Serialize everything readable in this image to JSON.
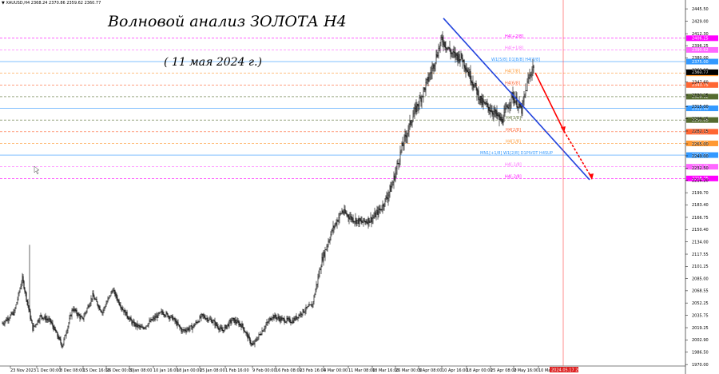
{
  "header": {
    "symbol": "XAUUSD,H4",
    "ohlc": "2368.24 2370.86 2359.62 2360.77"
  },
  "annotations": {
    "title": "Волновой анализ ЗОЛОТА H4",
    "subtitle": "( 11 мая 2024 г.)"
  },
  "chart_data": {
    "type": "candlestick",
    "symbol": "XAUUSD",
    "timeframe": "H4",
    "ylim": [
      1968.0,
      2452.0
    ],
    "y_ticks": [
      "2445.50",
      "2429.00",
      "2412.30",
      "2396.25",
      "2380.00",
      "2363.90",
      "2347.60",
      "2330.25",
      "2315.00",
      "2298.45",
      "2282.15",
      "2265.00",
      "2249.00",
      "2232.50",
      "2216.20",
      "2199.70",
      "2183.40",
      "2166.75",
      "2150.40",
      "2134.00",
      "2117.55",
      "2101.25",
      "2085.00",
      "2068.55",
      "2052.25",
      "2035.75",
      "2019.25",
      "2002.90",
      "1986.50",
      "1970.00"
    ],
    "x_ticks": [
      {
        "label": "23 Nov 2023",
        "x": 13
      },
      {
        "label": "1 Dec 00:00",
        "x": 46
      },
      {
        "label": "8 Dec 08:00",
        "x": 75
      },
      {
        "label": "15 Dec 16:00",
        "x": 104
      },
      {
        "label": "26 Dec 00:00",
        "x": 133
      },
      {
        "label": "3 Jan 08:00",
        "x": 162
      },
      {
        "label": "10 Jan 16:00",
        "x": 192
      },
      {
        "label": "18 Jan 00:00",
        "x": 221
      },
      {
        "label": "25 Jan 08:00",
        "x": 250
      },
      {
        "label": "1 Feb 16:00",
        "x": 282
      },
      {
        "label": "9 Feb 00:00",
        "x": 316
      },
      {
        "label": "16 Feb 08:00",
        "x": 345
      },
      {
        "label": "23 Feb 16:00",
        "x": 375
      },
      {
        "label": "4 Mar 00:00",
        "x": 405
      },
      {
        "label": "11 Mar 08:00",
        "x": 436
      },
      {
        "label": "18 Mar 16:00",
        "x": 466
      },
      {
        "label": "26 Mar 00:00",
        "x": 495
      },
      {
        "label": "3 Apr 08:00",
        "x": 524
      },
      {
        "label": "10 Apr 16:00",
        "x": 553
      },
      {
        "label": "18 Apr 00:00",
        "x": 584
      },
      {
        "label": "25 Apr 08:00",
        "x": 614
      },
      {
        "label": "2 May 16:00",
        "x": 643
      },
      {
        "label": "10 May 00:00",
        "x": 674
      }
    ],
    "current_time_label": "2024.05.17 20:00",
    "anchors": [
      {
        "i": 0,
        "p": 2025
      },
      {
        "i": 15,
        "p": 2040
      },
      {
        "i": 25,
        "p": 2085
      },
      {
        "i": 38,
        "p": 2018
      },
      {
        "i": 48,
        "p": 2035
      },
      {
        "i": 60,
        "p": 2028
      },
      {
        "i": 75,
        "p": 1995
      },
      {
        "i": 88,
        "p": 2045
      },
      {
        "i": 100,
        "p": 2030
      },
      {
        "i": 113,
        "p": 2062
      },
      {
        "i": 125,
        "p": 2040
      },
      {
        "i": 138,
        "p": 2070
      },
      {
        "i": 150,
        "p": 2045
      },
      {
        "i": 163,
        "p": 2025
      },
      {
        "i": 175,
        "p": 2018
      },
      {
        "i": 188,
        "p": 2030
      },
      {
        "i": 200,
        "p": 2040
      },
      {
        "i": 213,
        "p": 2032
      },
      {
        "i": 225,
        "p": 2015
      },
      {
        "i": 238,
        "p": 2020
      },
      {
        "i": 250,
        "p": 2035
      },
      {
        "i": 263,
        "p": 2028
      },
      {
        "i": 275,
        "p": 2015
      },
      {
        "i": 288,
        "p": 2030
      },
      {
        "i": 300,
        "p": 2022
      },
      {
        "i": 313,
        "p": 1995
      },
      {
        "i": 325,
        "p": 2015
      },
      {
        "i": 338,
        "p": 2035
      },
      {
        "i": 350,
        "p": 2030
      },
      {
        "i": 363,
        "p": 2028
      },
      {
        "i": 375,
        "p": 2040
      },
      {
        "i": 388,
        "p": 2050
      },
      {
        "i": 400,
        "p": 2110
      },
      {
        "i": 413,
        "p": 2150
      },
      {
        "i": 425,
        "p": 2175
      },
      {
        "i": 438,
        "p": 2165
      },
      {
        "i": 450,
        "p": 2160
      },
      {
        "i": 463,
        "p": 2165
      },
      {
        "i": 475,
        "p": 2180
      },
      {
        "i": 488,
        "p": 2210
      },
      {
        "i": 500,
        "p": 2260
      },
      {
        "i": 513,
        "p": 2300
      },
      {
        "i": 525,
        "p": 2330
      },
      {
        "i": 538,
        "p": 2365
      },
      {
        "i": 550,
        "p": 2405
      },
      {
        "i": 563,
        "p": 2385
      },
      {
        "i": 575,
        "p": 2380
      },
      {
        "i": 588,
        "p": 2350
      },
      {
        "i": 600,
        "p": 2320
      },
      {
        "i": 613,
        "p": 2310
      },
      {
        "i": 625,
        "p": 2295
      },
      {
        "i": 638,
        "p": 2330
      },
      {
        "i": 650,
        "p": 2310
      },
      {
        "i": 658,
        "p": 2350
      },
      {
        "i": 665,
        "p": 2370
      }
    ],
    "levels": [
      {
        "label": "H4[+2/8]",
        "price": 2406.25,
        "color": "#ff00ff",
        "dash": true,
        "tag": "2406.25"
      },
      {
        "label": "H4[+1/8]",
        "price": 2390.62,
        "color": "#ff66ff",
        "dash": true,
        "tag": "2390.62"
      },
      {
        "label": "W1[5/8] D1[8/8] H4[8/8]",
        "price": 2375.0,
        "color": "#3399ff",
        "dash": false,
        "tag": "2375.00"
      },
      {
        "label": "H4[7/8]",
        "price": 2359.38,
        "color": "#ff9933",
        "dash": true,
        "tag": "2359.38"
      },
      {
        "label": "H4[6/8]",
        "price": 2343.75,
        "color": "#ff6633",
        "dash": true,
        "tag": "2343.75"
      },
      {
        "label": "",
        "price": 2328.12,
        "color": "#556b2f",
        "dash": true,
        "tag": "2328.12"
      },
      {
        "label": "",
        "price": 2312.5,
        "color": "#3399ff",
        "dash": false,
        "tag": "2312.50"
      },
      {
        "label": "H4[3/8]",
        "price": 2296.88,
        "color": "#556b2f",
        "dash": true,
        "tag": "2296.88"
      },
      {
        "label": "H4[2/8]",
        "price": 2281.25,
        "color": "#ff6633",
        "dash": true,
        "tag": "2281.25"
      },
      {
        "label": "H4[1/8]",
        "price": 2265.62,
        "color": "#ff9933",
        "dash": true,
        "tag": "2265.62"
      },
      {
        "label": "MN1[+1/8] W1[2/8] D1PIVOT H4SUP",
        "price": 2250.0,
        "color": "#3399ff",
        "dash": false,
        "tag": "2250.00"
      },
      {
        "label": "H4[-1/8]",
        "price": 2234.38,
        "color": "#ff66ff",
        "dash": true,
        "tag": "2234.38"
      },
      {
        "label": "H4[-2/8]",
        "price": 2218.75,
        "color": "#ff00ff",
        "dash": true,
        "tag": "2218.75"
      }
    ],
    "price_tag": {
      "price": "2360.77",
      "color": "#000000"
    },
    "trendline": {
      "color": "#2244dd",
      "from": {
        "i": 552,
        "p": 2433
      },
      "to": {
        "i": 735,
        "p": 2217
      }
    },
    "forecast": {
      "color": "#ff0000",
      "from": {
        "i": 667,
        "p": 2360
      },
      "mid": {
        "i": 703,
        "p": 2282
      },
      "to": {
        "i": 738,
        "p": 2219
      }
    },
    "colors": {
      "bull": "#000000",
      "bear": "#000000",
      "vline": "#ff4444"
    }
  }
}
